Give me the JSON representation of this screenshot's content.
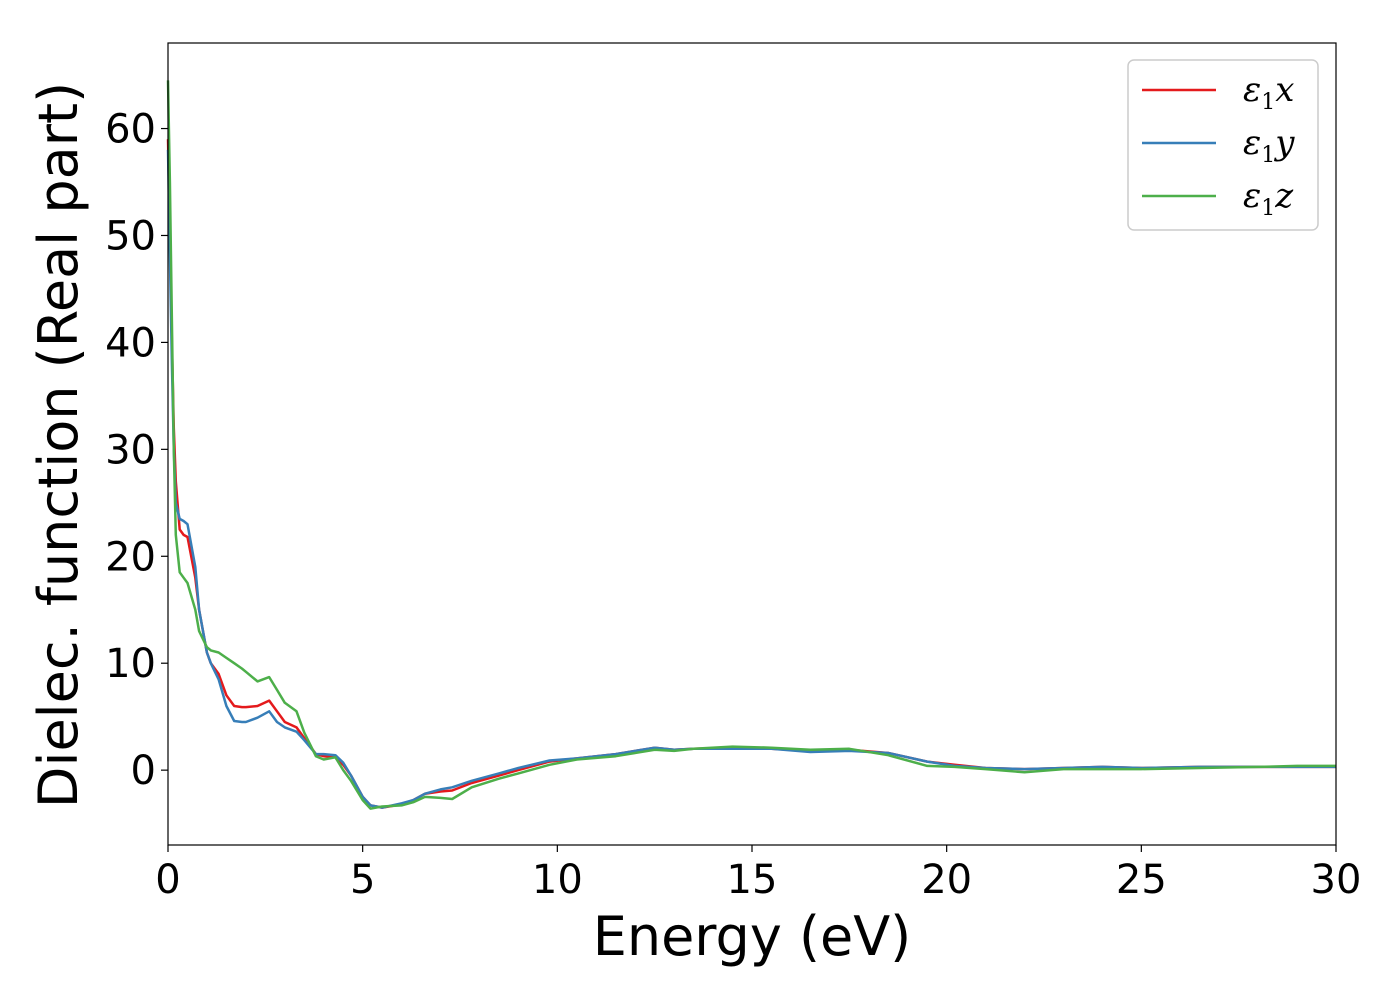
{
  "chart_data": {
    "type": "line",
    "title": "",
    "xlabel": "Energy (eV)",
    "ylabel": "Dielec. function (Real part)",
    "xlim": [
      0,
      30
    ],
    "ylim": [
      -7,
      68
    ],
    "xticks": [
      0,
      5,
      10,
      15,
      20,
      25,
      30
    ],
    "yticks": [
      0,
      10,
      20,
      30,
      40,
      50,
      60
    ],
    "grid": false,
    "legend_position": "top-right",
    "series": [
      {
        "name": "ε1x",
        "label_base": "ε",
        "label_sub": "1",
        "label_tail": "x",
        "color": "#e41a1c",
        "x": [
          0,
          0.05,
          0.1,
          0.15,
          0.2,
          0.3,
          0.4,
          0.5,
          0.7,
          0.8,
          1.0,
          1.1,
          1.3,
          1.5,
          1.7,
          1.9,
          2.0,
          2.3,
          2.6,
          2.8,
          3.0,
          3.3,
          3.5,
          3.8,
          4.0,
          4.3,
          4.5,
          4.7,
          5.0,
          5.2,
          5.5,
          6.0,
          6.3,
          6.6,
          7.0,
          7.3,
          7.8,
          8.5,
          9.0,
          9.8,
          10.5,
          11.5,
          12.5,
          13.0,
          13.5,
          14.5,
          15.5,
          16.5,
          17.5,
          18.5,
          19.5,
          20.2,
          21.0,
          22.0,
          23.0,
          24.0,
          25.0,
          26.5,
          28.0,
          29.0,
          30.0
        ],
        "y": [
          59,
          50,
          40,
          32,
          27,
          22.5,
          22,
          21.8,
          18,
          15,
          11,
          10,
          9,
          7,
          6,
          5.9,
          5.9,
          6,
          6.5,
          5.5,
          4.5,
          4,
          3,
          1.5,
          1.3,
          1.2,
          0.5,
          -0.5,
          -2.5,
          -3.3,
          -3.5,
          -3.2,
          -2.8,
          -2.2,
          -2.0,
          -1.9,
          -1.2,
          -0.5,
          0,
          0.8,
          1.1,
          1.5,
          2.1,
          1.9,
          2.0,
          2.1,
          2.0,
          1.8,
          1.9,
          1.6,
          0.8,
          0.5,
          0.2,
          0.1,
          0.2,
          0.3,
          0.2,
          0.3,
          0.3,
          0.3,
          0.3
        ]
      },
      {
        "name": "ε1y",
        "label_base": "ε",
        "label_sub": "1",
        "label_tail": "y",
        "color": "#377eb8",
        "x": [
          0,
          0.05,
          0.1,
          0.15,
          0.2,
          0.3,
          0.4,
          0.5,
          0.7,
          0.8,
          1.0,
          1.1,
          1.3,
          1.5,
          1.7,
          1.9,
          2.0,
          2.3,
          2.6,
          2.8,
          3.0,
          3.3,
          3.5,
          3.8,
          4.0,
          4.3,
          4.5,
          4.7,
          5.0,
          5.2,
          5.5,
          6.0,
          6.3,
          6.6,
          7.0,
          7.3,
          7.8,
          8.5,
          9.0,
          9.8,
          10.5,
          11.5,
          12.5,
          13.0,
          13.5,
          14.5,
          15.5,
          16.5,
          17.5,
          18.5,
          19.5,
          20.2,
          21.0,
          22.0,
          23.0,
          24.0,
          25.0,
          26.5,
          28.0,
          29.0,
          30.0
        ],
        "y": [
          58,
          48,
          38,
          30,
          25,
          23.5,
          23.3,
          23,
          19,
          15,
          11,
          10,
          8.5,
          6,
          4.6,
          4.5,
          4.5,
          4.9,
          5.5,
          4.5,
          4,
          3.6,
          2.8,
          1.5,
          1.5,
          1.4,
          0.7,
          -0.5,
          -2.5,
          -3.3,
          -3.5,
          -3.1,
          -2.8,
          -2.2,
          -1.8,
          -1.6,
          -1.0,
          -0.3,
          0.2,
          0.9,
          1.1,
          1.5,
          2.1,
          1.9,
          2.0,
          2.0,
          2.0,
          1.7,
          1.8,
          1.6,
          0.8,
          0.4,
          0.2,
          0.1,
          0.2,
          0.3,
          0.2,
          0.3,
          0.3,
          0.3,
          0.3
        ]
      },
      {
        "name": "ε1z",
        "label_base": "ε",
        "label_sub": "1",
        "label_tail": "z",
        "color": "#4daf4a",
        "x": [
          0,
          0.05,
          0.1,
          0.15,
          0.2,
          0.3,
          0.4,
          0.5,
          0.7,
          0.8,
          1.0,
          1.1,
          1.3,
          1.5,
          1.7,
          1.9,
          2.0,
          2.3,
          2.6,
          2.8,
          3.0,
          3.3,
          3.5,
          3.8,
          4.0,
          4.3,
          4.5,
          4.7,
          5.0,
          5.2,
          5.5,
          6.0,
          6.3,
          6.6,
          7.0,
          7.3,
          7.8,
          8.5,
          9.0,
          9.8,
          10.5,
          11.5,
          12.5,
          13.0,
          13.5,
          14.5,
          15.5,
          16.5,
          17.5,
          18.5,
          19.5,
          20.2,
          21.0,
          22.0,
          23.0,
          24.0,
          25.0,
          26.5,
          28.0,
          29.0,
          30.0
        ],
        "y": [
          64.5,
          55,
          42,
          30,
          22,
          18.5,
          18,
          17.5,
          15,
          13,
          11.5,
          11.2,
          11,
          10.5,
          10,
          9.5,
          9.2,
          8.3,
          8.7,
          7.5,
          6.3,
          5.5,
          3.5,
          1.3,
          1.0,
          1.2,
          0.0,
          -1.0,
          -2.8,
          -3.6,
          -3.4,
          -3.3,
          -3.0,
          -2.5,
          -2.6,
          -2.7,
          -1.6,
          -0.8,
          -0.3,
          0.5,
          1.0,
          1.3,
          1.9,
          1.8,
          2.0,
          2.2,
          2.1,
          1.9,
          2.0,
          1.4,
          0.4,
          0.3,
          0.1,
          -0.2,
          0.1,
          0.1,
          0.1,
          0.2,
          0.3,
          0.4,
          0.4
        ]
      }
    ]
  }
}
